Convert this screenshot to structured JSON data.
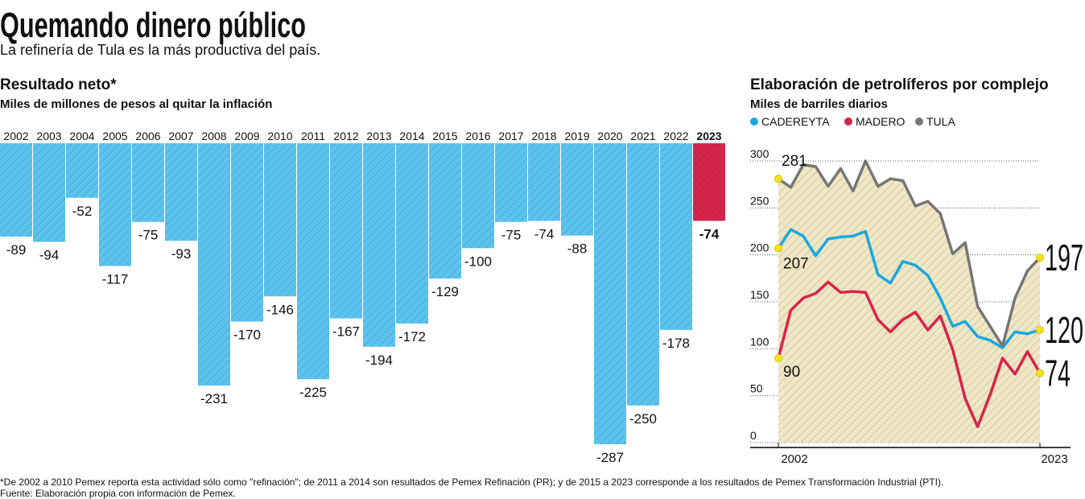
{
  "title": "Quemando dinero público",
  "subtitle": "La refinería de Tula es la más productiva del país.",
  "chart_data": [
    {
      "type": "bar",
      "title": "Resultado neto*",
      "subtitle": "Miles de millones de pesos al quitar la inflación",
      "categories": [
        "2002",
        "2003",
        "2004",
        "2005",
        "2006",
        "2007",
        "2008",
        "2009",
        "2010",
        "2011",
        "2012",
        "2013",
        "2014",
        "2015",
        "2016",
        "2017",
        "2018",
        "2019",
        "2020",
        "2021",
        "2022",
        "2023"
      ],
      "values": [
        -89,
        -94,
        -52,
        -117,
        -75,
        -93,
        -231,
        -170,
        -146,
        -225,
        -167,
        -194,
        -172,
        -129,
        -100,
        -75,
        -74,
        -88,
        -287,
        -250,
        -178,
        -74
      ],
      "colors": [
        "#5bc3ee",
        "#5bc3ee",
        "#5bc3ee",
        "#5bc3ee",
        "#5bc3ee",
        "#5bc3ee",
        "#5bc3ee",
        "#5bc3ee",
        "#5bc3ee",
        "#5bc3ee",
        "#5bc3ee",
        "#5bc3ee",
        "#5bc3ee",
        "#5bc3ee",
        "#5bc3ee",
        "#5bc3ee",
        "#5bc3ee",
        "#5bc3ee",
        "#5bc3ee",
        "#5bc3ee",
        "#5bc3ee",
        "#d8234b"
      ]
    },
    {
      "type": "line",
      "title": "Elaboración de petrolíferos por complejo",
      "subtitle": "Miles de barriles diarios",
      "x": [
        2002,
        2003,
        2004,
        2005,
        2006,
        2007,
        2008,
        2009,
        2010,
        2011,
        2012,
        2013,
        2014,
        2015,
        2016,
        2017,
        2018,
        2019,
        2020,
        2021,
        2022,
        2023
      ],
      "xlim": [
        2002,
        2023
      ],
      "xticks": [
        2002,
        2023
      ],
      "ylim": [
        0,
        300
      ],
      "yticks": [
        0,
        50,
        100,
        150,
        200,
        250,
        300
      ],
      "grid": true,
      "series": [
        {
          "name": "CADEREYTA",
          "color": "#1aa7de",
          "values": [
            207,
            227,
            220,
            199,
            217,
            219,
            220,
            225,
            179,
            170,
            193,
            189,
            178,
            154,
            124,
            129,
            113,
            109,
            101,
            118,
            116,
            120
          ]
        },
        {
          "name": "MADERO",
          "color": "#d8234b",
          "values": [
            90,
            141,
            154,
            159,
            171,
            160,
            161,
            160,
            131,
            118,
            131,
            139,
            120,
            135,
            99,
            47,
            17,
            51,
            90,
            73,
            97,
            74
          ]
        },
        {
          "name": "TULA",
          "color": "#767676",
          "values": [
            281,
            272,
            296,
            294,
            273,
            292,
            268,
            300,
            273,
            281,
            279,
            252,
            257,
            244,
            201,
            213,
            145,
            124,
            103,
            154,
            183,
            197
          ]
        }
      ]
    }
  ],
  "footnote": "*De 2002 a 2010 Pemex reporta esta actividad sólo como \"refinación\"; de 2011 a 2014 son resultados de Pemex Refinación (PR); y de 2015 a 2023 corresponde a los resultados de Pemex Transformación Industrial (PTI).",
  "source": "Fuente: Elaboración propia con información de Pemex."
}
